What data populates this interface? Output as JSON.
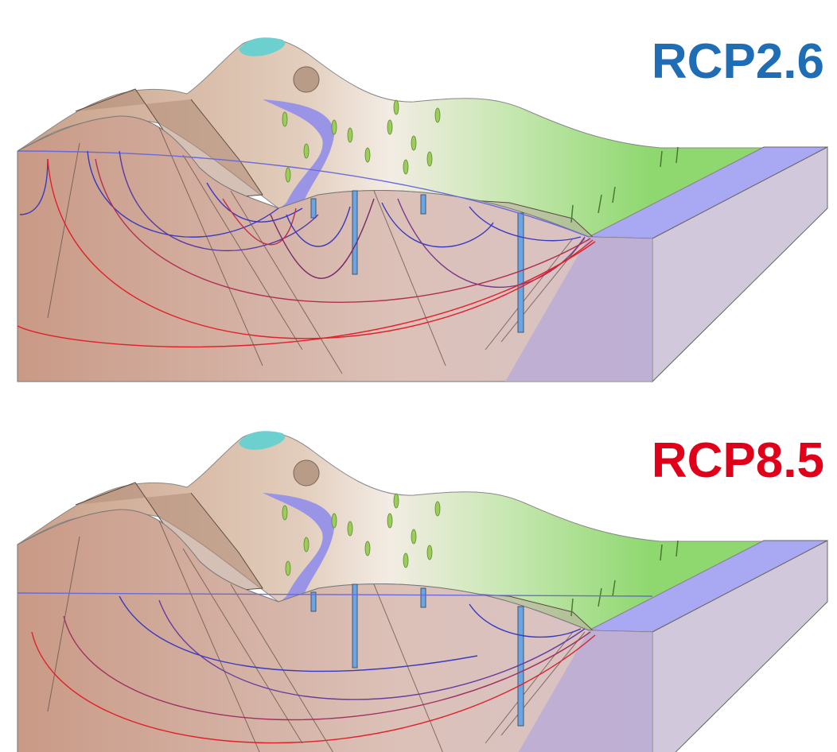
{
  "panels": [
    {
      "label": "RCP2.6"
    },
    {
      "label": "RCP8.5"
    }
  ]
}
